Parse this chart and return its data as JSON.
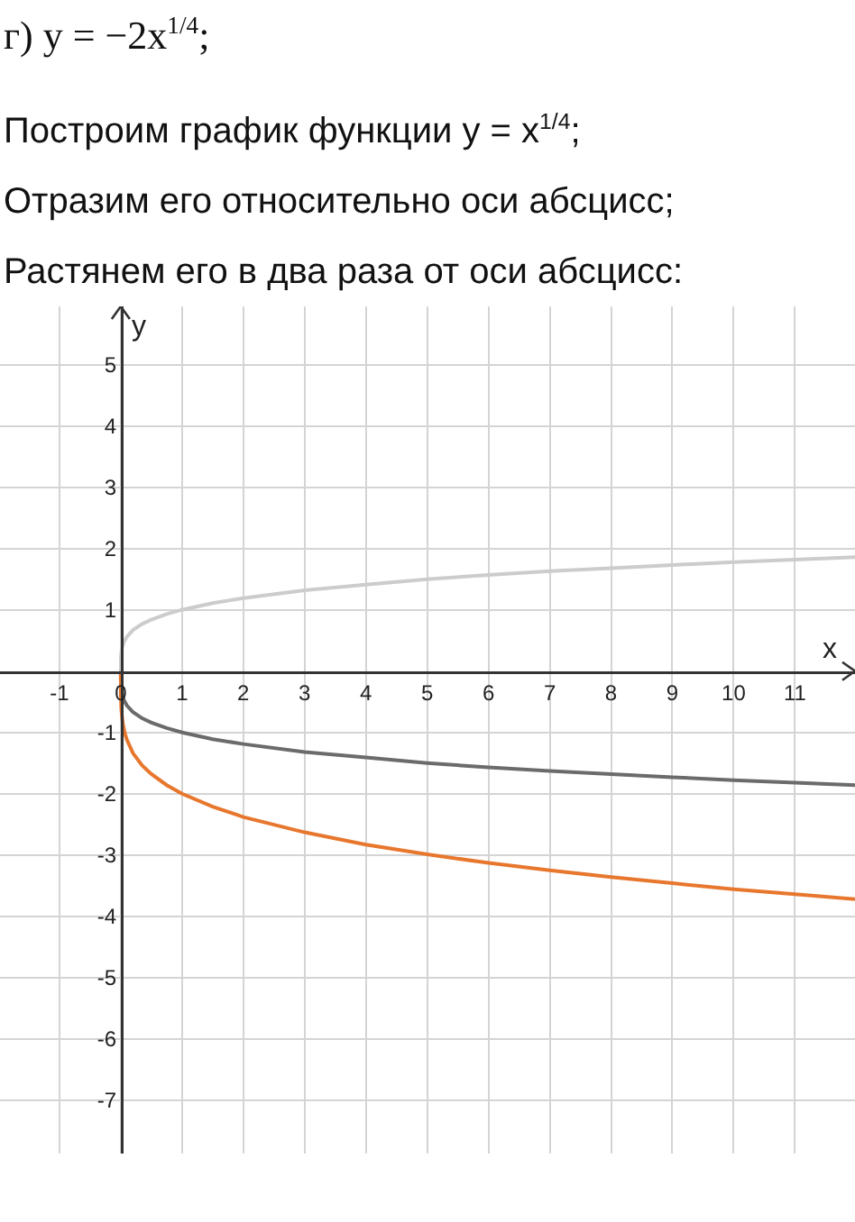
{
  "chart_data": {
    "type": "line",
    "title": "г) y = −2x$^{1/4}$;",
    "annotations": [
      "Построим график функции y = x$^{1/4}$;",
      "Отразим его относительно оси абсцисс;",
      "Растянем его в два раза от оси абсцисс:"
    ],
    "xlabel": "x",
    "ylabel": "y",
    "x": [
      0,
      0.002,
      0.01,
      0.03,
      0.06,
      0.1,
      0.2,
      0.35,
      0.5,
      0.75,
      1,
      1.5,
      2,
      3,
      4,
      5,
      6,
      7,
      8,
      9,
      10,
      11,
      11.98
    ],
    "series": [
      {
        "color": "#cccccc",
        "values": [
          0,
          0.21,
          0.32,
          0.42,
          0.49,
          0.56,
          0.67,
          0.77,
          0.84,
          0.93,
          1,
          1.11,
          1.19,
          1.32,
          1.41,
          1.5,
          1.57,
          1.63,
          1.68,
          1.73,
          1.78,
          1.82,
          1.86
        ]
      },
      {
        "color": "#6b6b6b",
        "values": [
          0,
          -0.21,
          -0.32,
          -0.42,
          -0.49,
          -0.56,
          -0.67,
          -0.77,
          -0.84,
          -0.93,
          -1,
          -1.11,
          -1.19,
          -1.32,
          -1.41,
          -1.5,
          -1.57,
          -1.63,
          -1.68,
          -1.73,
          -1.78,
          -1.82,
          -1.86
        ]
      },
      {
        "color": "#e8772e",
        "values": [
          0,
          -0.42,
          -0.63,
          -0.83,
          -0.99,
          -1.12,
          -1.34,
          -1.54,
          -1.68,
          -1.86,
          -2,
          -2.21,
          -2.38,
          -2.63,
          -2.83,
          -2.99,
          -3.13,
          -3.25,
          -3.36,
          -3.46,
          -3.56,
          -3.64,
          -3.72
        ]
      }
    ],
    "xlim": [
      -1.97,
      11.98
    ],
    "ylim": [
      -7.87,
      5.95
    ],
    "xticks": [
      -1,
      0,
      1,
      2,
      3,
      4,
      5,
      6,
      7,
      8,
      9,
      10,
      11
    ],
    "yticks": [
      -7,
      -6,
      -5,
      -4,
      -3,
      -2,
      -1,
      1,
      2,
      3,
      4,
      5
    ],
    "grid": true,
    "line_style": "solid"
  }
}
